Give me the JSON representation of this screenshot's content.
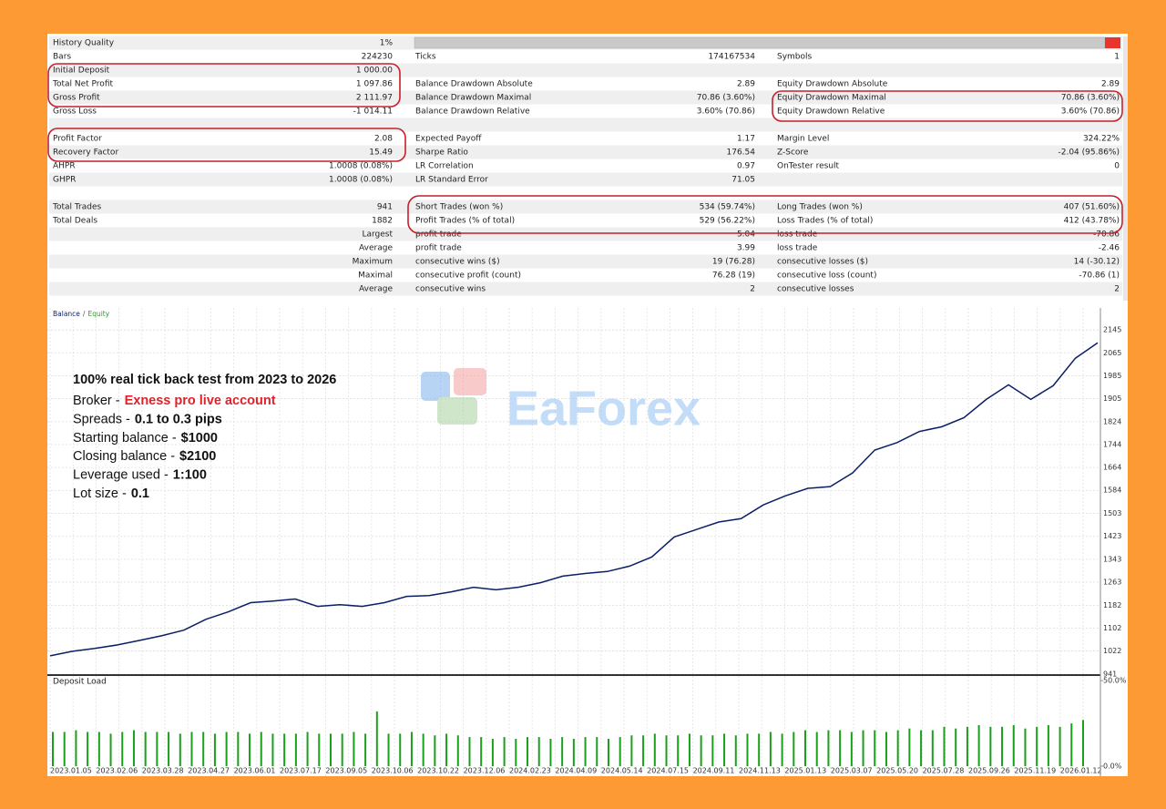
{
  "report": {
    "rows": [
      [
        {
          "label": "History Quality",
          "value": "1%"
        },
        null,
        null
      ],
      [
        {
          "label": "Bars",
          "value": "224230"
        },
        {
          "label": "Ticks",
          "value": "174167534"
        },
        {
          "label": "Symbols",
          "value": "1"
        }
      ],
      [
        {
          "label": "Initial Deposit",
          "value": "1 000.00"
        },
        null,
        null
      ],
      [
        {
          "label": "Total Net Profit",
          "value": "1 097.86"
        },
        {
          "label": "Balance Drawdown Absolute",
          "value": "2.89"
        },
        {
          "label": "Equity Drawdown Absolute",
          "value": "2.89"
        }
      ],
      [
        {
          "label": "Gross Profit",
          "value": "2 111.97"
        },
        {
          "label": "Balance Drawdown Maximal",
          "value": "70.86 (3.60%)"
        },
        {
          "label": "Equity Drawdown Maximal",
          "value": "70.86 (3.60%)"
        }
      ],
      [
        {
          "label": "Gross Loss",
          "value": "-1 014.11"
        },
        {
          "label": "Balance Drawdown Relative",
          "value": "3.60% (70.86)"
        },
        {
          "label": "Equity Drawdown Relative",
          "value": "3.60% (70.86)"
        }
      ],
      [
        null,
        null,
        null
      ],
      [
        {
          "label": "Profit Factor",
          "value": "2.08"
        },
        {
          "label": "Expected Payoff",
          "value": "1.17"
        },
        {
          "label": "Margin Level",
          "value": "324.22%"
        }
      ],
      [
        {
          "label": "Recovery Factor",
          "value": "15.49"
        },
        {
          "label": "Sharpe Ratio",
          "value": "176.54"
        },
        {
          "label": "Z-Score",
          "value": "-2.04 (95.86%)"
        }
      ],
      [
        {
          "label": "AHPR",
          "value": "1.0008 (0.08%)"
        },
        {
          "label": "LR Correlation",
          "value": "0.97"
        },
        {
          "label": "OnTester result",
          "value": "0"
        }
      ],
      [
        {
          "label": "GHPR",
          "value": "1.0008 (0.08%)"
        },
        {
          "label": "LR Standard Error",
          "value": "71.05"
        },
        null
      ],
      [
        null,
        null,
        null
      ],
      [
        {
          "label": "Total Trades",
          "value": "941"
        },
        {
          "label": "Short Trades (won %)",
          "value": "534 (59.74%)"
        },
        {
          "label": "Long Trades (won %)",
          "value": "407 (51.60%)"
        }
      ],
      [
        {
          "label": "Total Deals",
          "value": "1882"
        },
        {
          "label": "Profit Trades (% of total)",
          "value": "529 (56.22%)"
        },
        {
          "label": "Loss Trades (% of total)",
          "value": "412 (43.78%)"
        }
      ],
      [
        {
          "label": "Largest"
        },
        {
          "label": "profit trade",
          "value": "5.04"
        },
        {
          "label": "loss trade",
          "value": "-70.86"
        }
      ],
      [
        {
          "label": "Average"
        },
        {
          "label": "profit trade",
          "value": "3.99"
        },
        {
          "label": "loss trade",
          "value": "-2.46"
        }
      ],
      [
        {
          "label": "Maximum"
        },
        {
          "label": "consecutive wins ($)",
          "value": "19 (76.28)"
        },
        {
          "label": "consecutive losses ($)",
          "value": "14 (-30.12)"
        }
      ],
      [
        {
          "label": "Maximal"
        },
        {
          "label": "consecutive profit (count)",
          "value": "76.28 (19)"
        },
        {
          "label": "consecutive loss (count)",
          "value": "-70.86 (1)"
        }
      ],
      [
        {
          "label": "Average"
        },
        {
          "label": "consecutive wins",
          "value": "2"
        },
        {
          "label": "consecutive losses",
          "value": "2"
        }
      ]
    ]
  },
  "balance_chart": {
    "type": "line",
    "separator": "/",
    "series": [
      {
        "name": "Balance",
        "color": "#0b1f66",
        "values": [
          1005,
          1021,
          1031,
          1043,
          1059,
          1075,
          1095,
          1133,
          1159,
          1191,
          1197,
          1204,
          1178,
          1184,
          1178,
          1191,
          1213,
          1216,
          1229,
          1245,
          1236,
          1245,
          1261,
          1284,
          1293,
          1300,
          1319,
          1351,
          1421,
          1447,
          1473,
          1485,
          1533,
          1565,
          1591,
          1597,
          1645,
          1725,
          1751,
          1790,
          1806,
          1838,
          1902,
          1953,
          1902,
          1950,
          2046,
          2100
        ]
      },
      {
        "name": "Equity",
        "color": "#2e9a2e"
      }
    ],
    "xtick_labels": [
      "2023.01.05",
      "2023.02.06",
      "2023.03.28",
      "2023.04.27",
      "2023.06.01",
      "2023.07.17",
      "2023.09.05",
      "2023.10.06",
      "2023.10.22",
      "2023.12.06",
      "2024.02.23",
      "2024.04.09",
      "2024.05.14",
      "2024.07.15",
      "2024.09.11",
      "2024.11.13",
      "2025.01.13",
      "2025.03.07",
      "2025.05.20",
      "2025.07.28",
      "2025.09.26",
      "2025.11.19",
      "2026.01.12"
    ],
    "ylim": [
      941,
      2222
    ],
    "yticks": [
      2145,
      2065,
      1985,
      1905,
      1824,
      1744,
      1664,
      1584,
      1503,
      1423,
      1343,
      1263,
      1182,
      1102,
      1022,
      941
    ],
    "grid": true
  },
  "deposit_load": {
    "type": "bar",
    "title": "Deposit Load",
    "color": "#1aa01a",
    "values": [
      20,
      20,
      21,
      20,
      20,
      19,
      20,
      21,
      20,
      20,
      20,
      19,
      20,
      20,
      19,
      20,
      20,
      19,
      20,
      19,
      19,
      19,
      20,
      19,
      19,
      19,
      20,
      19,
      32,
      19,
      19,
      20,
      19,
      18,
      19,
      18,
      17,
      17,
      16,
      17,
      16,
      17,
      17,
      16,
      17,
      16,
      17,
      17,
      16,
      17,
      18,
      18,
      19,
      18,
      18,
      19,
      18,
      18,
      19,
      18,
      19,
      19,
      20,
      19,
      20,
      21,
      20,
      21,
      21,
      20,
      21,
      21,
      20,
      21,
      22,
      21,
      21,
      23,
      22,
      23,
      24,
      23,
      23,
      24,
      22,
      23,
      24,
      23,
      25,
      27
    ],
    "ylim": [
      0,
      52.7
    ],
    "yticks": [
      {
        "value": 50,
        "label": "50.0%"
      },
      {
        "value": 0,
        "label": "0.0%"
      }
    ]
  },
  "annotations": {
    "title": "100% real tick back test from 2023 to 2026",
    "lines": [
      {
        "label": "Broker -",
        "value": "Exness pro live account",
        "color": "#e0222a"
      },
      {
        "label": "Spreads -",
        "value": "0.1 to 0.3 pips"
      },
      {
        "label": "Starting balance -",
        "value": "$1000"
      },
      {
        "label": "Closing balance -",
        "value": "$2100"
      },
      {
        "label": "Leverage used -",
        "value": "1:100"
      },
      {
        "label": "Lot size -",
        "value": "0.1"
      }
    ]
  },
  "watermark": "EaForex"
}
